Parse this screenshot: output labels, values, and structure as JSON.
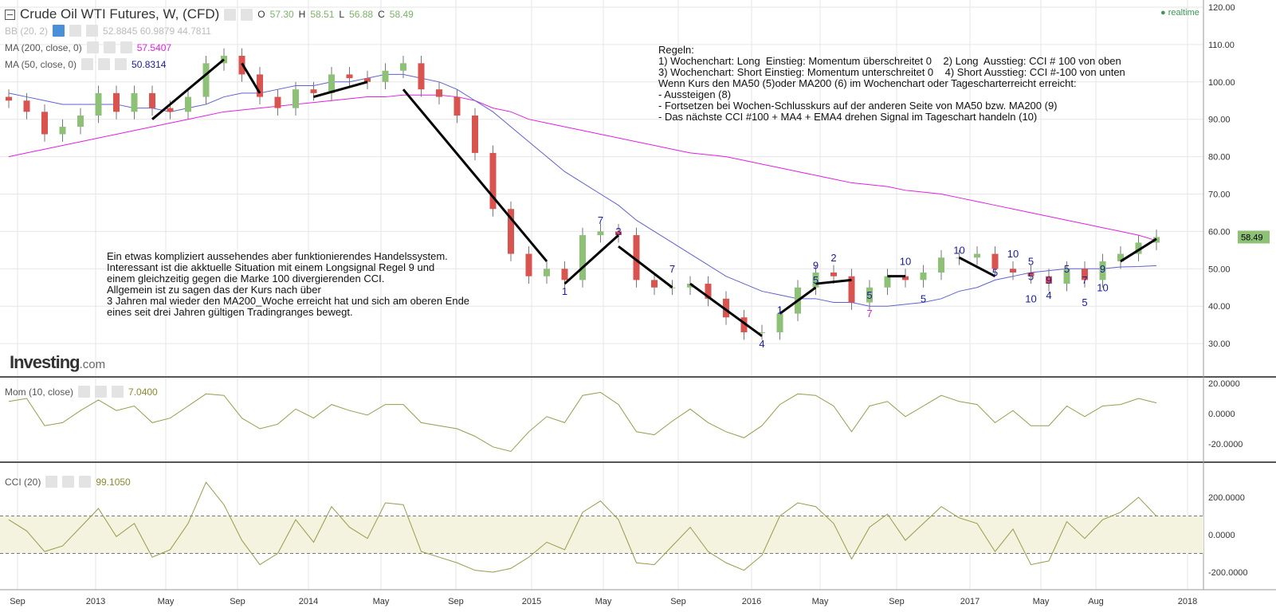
{
  "header": {
    "title": "Crude Oil WTI Futures, W, (CFD)",
    "ohlc": {
      "o_label": "O",
      "o": "57.30",
      "h_label": "H",
      "h": "58.51",
      "l_label": "L",
      "l": "56.88",
      "c_label": "C",
      "c": "58.49"
    },
    "realtime": "realtime"
  },
  "indicators": [
    {
      "label": "BB (20, 2)",
      "values": "52.8845  60.9879  44.7811",
      "color": "#bbbbbb"
    },
    {
      "label": "MA (200, close, 0)",
      "values": "57.5407",
      "color": "#e020e0"
    },
    {
      "label": "MA (50, close, 0)",
      "values": "50.8314",
      "color": "#1a1aa0"
    },
    {
      "label": "Mom (10, close)",
      "values": "7.0400",
      "color": "#8a8a30"
    },
    {
      "label": "CCI (20)",
      "values": "99.1050",
      "color": "#8a8a30"
    }
  ],
  "notes": {
    "rules": "Regeln:\n1) Wochenchart: Long  Einstieg: Momentum überschreitet 0    2) Long  Ausstieg: CCI # 100 von oben\n3) Wochenchart: Short Einstieg: Momentum unterschreitet 0    4) Short Ausstieg: CCI #-100 von unten\nWenn Kurs den MA50 (5)oder MA200 (6) im Wochenchart oder Tagescharterreicht erreicht:\n- Aussteigen (8)\n- Fortsetzen bei Wochen-Schlusskurs auf der anderen Seite von MA50 bzw. MA200 (9)\n- Das nächste CCI #100 + MA4 + EMA4 drehen Signal im Tageschart handeln (10)",
    "comment": "Ein etwas kompliziert aussehendes aber funktionierendes Handelssystem.\nInteressant ist die akktuelle Situation mit einem Longsignal Regel 9 und\neinem gleichzeitig gegen die Marke 100 divergierenden CCI.\nAllgemein ist zu sagen das der Kurs nach über\n3 Jahren mal wieder den MA200_Woche erreicht hat und sich am oberen Ende\neines seit drei Jahren gültigen Tradingranges bewegt."
  },
  "logo": {
    "main": "Investing",
    "suffix": ".com"
  },
  "chart_data": [
    {
      "type": "candlestick",
      "name": "price",
      "ylim": [
        22,
        122
      ],
      "yticks": [
        "120.00",
        "110.00",
        "100.00",
        "90.00",
        "80.00",
        "70.00",
        "60.00",
        "50.00",
        "40.00",
        "30.00"
      ],
      "last_price": "58.49",
      "months": [
        "2012-08",
        "2012-09",
        "2012-10",
        "2012-11",
        "2012-12",
        "2013-01",
        "2013-02",
        "2013-03",
        "2013-04",
        "2013-05",
        "2013-06",
        "2013-07",
        "2013-08",
        "2013-09",
        "2013-10",
        "2013-11",
        "2013-12",
        "2014-01",
        "2014-02",
        "2014-03",
        "2014-04",
        "2014-05",
        "2014-06",
        "2014-07",
        "2014-08",
        "2014-09",
        "2014-10",
        "2014-11",
        "2014-12",
        "2015-01",
        "2015-02",
        "2015-03",
        "2015-04",
        "2015-05",
        "2015-06",
        "2015-07",
        "2015-08",
        "2015-09",
        "2015-10",
        "2015-11",
        "2015-12",
        "2016-01",
        "2016-02",
        "2016-03",
        "2016-04",
        "2016-05",
        "2016-06",
        "2016-07",
        "2016-08",
        "2016-09",
        "2016-10",
        "2016-11",
        "2016-12",
        "2017-01",
        "2017-02",
        "2017-03",
        "2017-04",
        "2017-05",
        "2017-06",
        "2017-07",
        "2017-08",
        "2017-09",
        "2017-10",
        "2017-11",
        "2017-12"
      ],
      "close": [
        95,
        92,
        86,
        88,
        91,
        97,
        92,
        97,
        93,
        92,
        96,
        105,
        107,
        102,
        96,
        93,
        98,
        97,
        102,
        101,
        100,
        103,
        105,
        98,
        96,
        91,
        81,
        66,
        54,
        48,
        50,
        47,
        59,
        60,
        59,
        47,
        45,
        45,
        46,
        42,
        37,
        33,
        33,
        38,
        45,
        49,
        48,
        41,
        45,
        48,
        47,
        49,
        53,
        53,
        54,
        50,
        49,
        48,
        46,
        50,
        47,
        52,
        54,
        57,
        58.49
      ],
      "ma200": [
        80,
        81,
        82,
        83,
        84,
        85,
        86,
        87,
        88,
        89,
        90,
        91,
        92,
        92.5,
        93,
        93.5,
        94,
        94.5,
        95,
        95.5,
        96,
        96,
        96.5,
        96.5,
        96.5,
        96,
        95,
        93,
        92,
        90,
        89,
        88,
        87,
        86,
        85,
        84,
        83,
        82,
        81,
        80.5,
        80,
        79,
        78,
        77,
        76,
        75,
        74,
        73,
        72.5,
        72,
        71,
        70.5,
        70,
        69,
        68,
        67,
        66,
        65,
        64,
        63,
        62,
        61,
        60,
        59,
        57.54
      ],
      "ma50": [
        97,
        96,
        95,
        94,
        94,
        94,
        94,
        93,
        93,
        92,
        93,
        94,
        96,
        97,
        97,
        98,
        99,
        99,
        100,
        100,
        101,
        102,
        102,
        101,
        100,
        98,
        95,
        92,
        88,
        84,
        80,
        76,
        73,
        70,
        67,
        63,
        60,
        57,
        54,
        51,
        48,
        46,
        44,
        43,
        42,
        42,
        41,
        41,
        40,
        40,
        40.5,
        41,
        42,
        44,
        45,
        47,
        48,
        49,
        49.5,
        50,
        50,
        50,
        50.5,
        50.6,
        50.83
      ],
      "annotations": [
        [
          "2015-03",
          43,
          "1",
          "#1a1aa0"
        ],
        [
          "2015-05",
          62,
          "7",
          "#1a1aa0"
        ],
        [
          "2015-06",
          59,
          "3",
          "#1a1aa0"
        ],
        [
          "2015-09",
          49,
          "7",
          "#1a1aa0"
        ],
        [
          "2016-02",
          29,
          "4",
          "#1a1aa0"
        ],
        [
          "2016-03",
          38,
          "1",
          "#1a1aa0"
        ],
        [
          "2016-05",
          46,
          "5",
          "#1a1aa0"
        ],
        [
          "2016-05",
          50,
          "9",
          "#1a1aa0"
        ],
        [
          "2016-06",
          52,
          "2",
          "#1a1aa0"
        ],
        [
          "2016-08",
          42,
          "5",
          "#1a1aa0"
        ],
        [
          "2016-08",
          40,
          "7",
          "#e020e0"
        ],
        [
          "2016-10",
          51,
          "10",
          "#1a1aa0"
        ],
        [
          "2016-11",
          41,
          "5",
          "#1a1aa0"
        ],
        [
          "2017-01",
          54,
          "10",
          "#1a1aa0"
        ],
        [
          "2017-03",
          48,
          "5",
          "#1a1aa0"
        ],
        [
          "2017-04",
          53,
          "10",
          "#1a1aa0"
        ],
        [
          "2017-05",
          51,
          "5",
          "#1a1aa0"
        ],
        [
          "2017-05",
          47,
          "5",
          "#1a1aa0"
        ],
        [
          "2017-05",
          44,
          "10",
          "#1a1aa0"
        ],
        [
          "2017-06",
          46,
          "9",
          "#1a1aa0"
        ],
        [
          "2017-06",
          42,
          "4",
          "#1a1aa0"
        ],
        [
          "2017-07",
          49,
          "5",
          "#1a1aa0"
        ],
        [
          "2017-08",
          46,
          "7",
          "#1a1aa0"
        ],
        [
          "2017-08",
          49,
          "5",
          "#1a1aa0"
        ],
        [
          "2017-09",
          49,
          "9",
          "#1a1aa0"
        ],
        [
          "2017-09",
          44,
          "10",
          "#1a1aa0"
        ]
      ],
      "trendlines": [
        [
          "2013-04",
          90,
          "2013-08",
          106
        ],
        [
          "2013-09",
          105,
          "2013-10",
          97
        ],
        [
          "2014-01",
          96,
          "2014-04",
          100
        ],
        [
          "2014-06",
          98,
          "2015-02",
          52
        ],
        [
          "2015-03",
          46,
          "2015-06",
          59
        ],
        [
          "2015-06",
          56,
          "2015-09",
          45
        ],
        [
          "2015-10",
          46,
          "2016-02",
          32
        ],
        [
          "2016-03",
          38,
          "2016-05",
          45
        ],
        [
          "2016-05",
          46,
          "2016-07",
          47
        ],
        [
          "2016-09",
          48,
          "2016-10",
          48
        ],
        [
          "2017-01",
          53,
          "2017-03",
          48
        ],
        [
          "2017-10",
          52,
          "2017-12",
          58
        ]
      ]
    },
    {
      "type": "line",
      "name": "Mom (10, close)",
      "ylim": [
        -22,
        22
      ],
      "yticks": [
        "20.0000",
        "0.0000",
        "-20.0000"
      ],
      "values": [
        8,
        10,
        -8,
        -6,
        2,
        9,
        2,
        5,
        -6,
        -3,
        5,
        13,
        12,
        -3,
        -10,
        -7,
        3,
        -3,
        6,
        2,
        -1,
        6,
        6,
        -6,
        -8,
        -10,
        -15,
        -22,
        -25,
        -12,
        -2,
        -6,
        12,
        14,
        6,
        -12,
        -14,
        -5,
        3,
        -6,
        -12,
        -16,
        -8,
        6,
        13,
        12,
        5,
        -12,
        5,
        8,
        -2,
        5,
        12,
        8,
        6,
        -6,
        2,
        -8,
        -8,
        5,
        -2,
        5,
        6,
        10,
        7.04
      ]
    },
    {
      "type": "line",
      "name": "CCI (20)",
      "ylim": [
        -230,
        300
      ],
      "yticks": [
        "200.0000",
        "0.0000",
        "-200.0000"
      ],
      "bands": [
        100,
        -100
      ],
      "values": [
        80,
        20,
        -90,
        -60,
        40,
        140,
        -10,
        60,
        -120,
        -80,
        60,
        280,
        160,
        -30,
        -160,
        -100,
        80,
        -40,
        150,
        40,
        -20,
        170,
        160,
        -90,
        -120,
        -150,
        -190,
        -200,
        -180,
        -120,
        -40,
        -80,
        120,
        180,
        80,
        -150,
        -160,
        -60,
        40,
        -90,
        -150,
        -190,
        -110,
        100,
        170,
        150,
        60,
        -130,
        40,
        110,
        -30,
        60,
        150,
        90,
        60,
        -90,
        30,
        -160,
        -140,
        70,
        -20,
        80,
        120,
        200,
        99.1
      ]
    }
  ],
  "time_axis": [
    "Sep",
    "2013",
    "May",
    "Sep",
    "2014",
    "May",
    "Sep",
    "2015",
    "May",
    "Sep",
    "2016",
    "May",
    "Sep",
    "2017",
    "May",
    "Aug",
    "2018"
  ],
  "colors": {
    "up": "#8cc176",
    "down": "#d9534f",
    "grid": "#e6e6e6",
    "mom": "#9a9a4a",
    "band_fill": "#f3f3e0"
  }
}
